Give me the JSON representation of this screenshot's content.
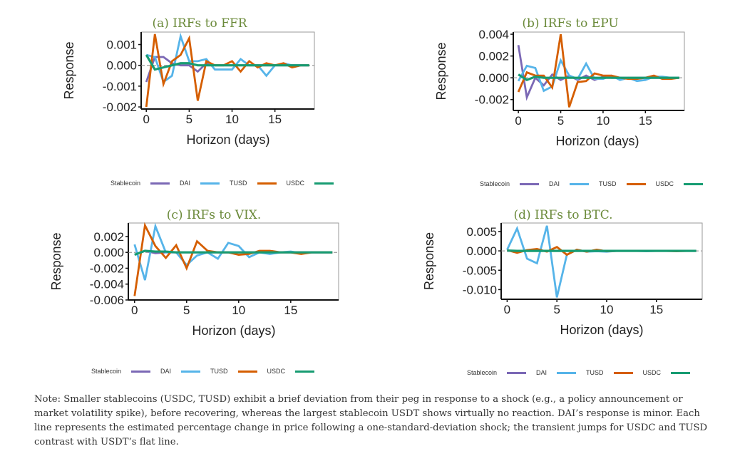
{
  "chart_data": [
    {
      "type": "line",
      "title": "(a) IRFs to FFR",
      "xlabel": "Horizon (days)",
      "ylabel": "Response",
      "xlim": [
        -0.6,
        19.6
      ],
      "ylim": [
        -0.0021,
        0.0016
      ],
      "xticks": [
        0,
        5,
        10,
        15
      ],
      "yticks": [
        -0.002,
        -0.001,
        0.0,
        0.001
      ],
      "ytick_labels": [
        "-0.002",
        "-0.001",
        "0.000",
        "0.001"
      ],
      "x": [
        0,
        1,
        2,
        3,
        4,
        5,
        6,
        7,
        8,
        9,
        10,
        11,
        12,
        13,
        14,
        15,
        16,
        17,
        18,
        19
      ],
      "series": [
        {
          "color": "#7b68b5",
          "values": [
            -0.0008,
            0.0004,
            0.0004,
            0.0001,
            0,
            0,
            -0.0003,
            0.0001,
            0,
            0,
            0,
            0,
            0,
            0,
            0,
            0,
            0,
            0,
            0,
            0
          ]
        },
        {
          "color": "#56b4e9",
          "values": [
            0.0005,
            0.0004,
            -0.0008,
            -0.0005,
            0.0014,
            0.0002,
            0.0002,
            0.0003,
            -0.0002,
            -0.0002,
            -0.0002,
            0.0003,
            0,
            0,
            -0.0005,
            0,
            0.0001,
            0,
            0,
            0
          ]
        },
        {
          "color": "#d55e00",
          "values": [
            -0.002,
            0.0015,
            -0.0009,
            0.0002,
            0.0005,
            0.0013,
            -0.0017,
            0.0002,
            0,
            0,
            0.0002,
            -0.0003,
            0.0002,
            -0.0001,
            0.0001,
            0,
            0.0001,
            -0.0001,
            0,
            0
          ]
        },
        {
          "color": "#179c72",
          "values": [
            0.0005,
            -0.0002,
            -0.0001,
            0,
            0.0001,
            0.0001,
            0,
            0,
            0,
            0,
            0,
            0,
            0,
            0,
            0,
            0,
            0,
            0,
            0,
            0
          ]
        }
      ],
      "legend": {
        "title": "Stablecoin",
        "labels": [
          "DAI",
          "TUSD",
          "USDC",
          ""
        ]
      }
    },
    {
      "type": "line",
      "title": "(b) IRFs to EPU",
      "xlabel": "Horizon (days)",
      "ylabel": "Response",
      "xlim": [
        -0.6,
        19.6
      ],
      "ylim": [
        -0.003,
        0.0042
      ],
      "xticks": [
        0,
        5,
        10,
        15
      ],
      "yticks": [
        -0.002,
        0.0,
        0.002,
        0.004
      ],
      "ytick_labels": [
        "-0.002",
        "0.000",
        "0.002",
        "0.004"
      ],
      "x": [
        0,
        1,
        2,
        3,
        4,
        5,
        6,
        7,
        8,
        9,
        10,
        11,
        12,
        13,
        14,
        15,
        16,
        17,
        18,
        19
      ],
      "series": [
        {
          "color": "#7b68b5",
          "values": [
            0.003,
            -0.0018,
            0,
            -0.0007,
            0.0003,
            -0.0002,
            0.0002,
            -0.0002,
            0.0002,
            -0.0002,
            0.0001,
            0,
            0,
            0,
            0,
            0,
            0,
            0,
            0,
            0
          ]
        },
        {
          "color": "#56b4e9",
          "values": [
            -0.0003,
            0.0011,
            0.0009,
            -0.0012,
            -0.0008,
            0.0016,
            0.0002,
            -0.0001,
            0.0013,
            -0.0001,
            -0.0001,
            0.0002,
            -0.0002,
            0,
            -0.0003,
            -0.0002,
            0.0001,
            0.0001,
            0,
            0
          ]
        },
        {
          "color": "#d55e00",
          "values": [
            -0.0013,
            0.0005,
            0.0002,
            0.0002,
            -0.0009,
            0.004,
            -0.0027,
            -0.0004,
            -0.0003,
            0.0004,
            0.0002,
            0.0002,
            0,
            -0.0001,
            -0.0001,
            0,
            0.0002,
            -0.0001,
            -0.0001,
            0
          ]
        },
        {
          "color": "#179c72",
          "values": [
            0.0003,
            -0.0002,
            0.0001,
            0,
            0,
            0,
            0,
            0,
            0,
            0,
            0,
            0,
            0,
            0,
            0,
            0,
            0,
            0,
            0,
            0
          ]
        }
      ],
      "legend": {
        "title": "Stablecoin",
        "labels": [
          "DAI",
          "TUSD",
          "USDC",
          ""
        ]
      }
    },
    {
      "type": "line",
      "title": "(c) IRFs to VIX.",
      "xlabel": "Horizon (days)",
      "ylabel": "Response",
      "xlim": [
        -0.6,
        19.6
      ],
      "ylim": [
        -0.006,
        0.0037
      ],
      "xticks": [
        0,
        5,
        10,
        15
      ],
      "yticks": [
        -0.006,
        -0.004,
        -0.002,
        0.0,
        0.002
      ],
      "ytick_labels": [
        "-0.006",
        "-0.004",
        "-0.002",
        "0.000",
        "0.002"
      ],
      "x": [
        0,
        1,
        2,
        3,
        4,
        5,
        6,
        7,
        8,
        9,
        10,
        11,
        12,
        13,
        14,
        15,
        16,
        17,
        18,
        19
      ],
      "series": [
        {
          "color": "#7b68b5",
          "values": [
            -0.0003,
            0.0002,
            -0.0001,
            0,
            0,
            0,
            0,
            0,
            0,
            0,
            0,
            0,
            0,
            0,
            0,
            0,
            0,
            0,
            0,
            0
          ]
        },
        {
          "color": "#56b4e9",
          "values": [
            0.001,
            -0.0035,
            0.0033,
            0,
            0,
            -0.0016,
            -0.0004,
            0,
            -0.0008,
            0.0012,
            0.0008,
            -0.0006,
            0,
            -0.0002,
            0,
            0.0001,
            -0.0001,
            0,
            0,
            0
          ]
        },
        {
          "color": "#d55e00",
          "values": [
            -0.0055,
            0.0034,
            0.0008,
            -0.0007,
            0.0009,
            -0.002,
            0.0014,
            0.0002,
            0,
            0,
            -0.0003,
            -0.0002,
            0.0002,
            0.0002,
            0,
            0,
            -0.0002,
            0,
            0,
            0
          ]
        },
        {
          "color": "#179c72",
          "values": [
            -0.0003,
            0.0002,
            0.0001,
            0.0001,
            0,
            0,
            0,
            0,
            0,
            0,
            0,
            0,
            0,
            0,
            0,
            0,
            0,
            0,
            0,
            0
          ]
        }
      ],
      "legend": {
        "title": "Stablecoin",
        "labels": [
          "DAI",
          "TUSD",
          "USDC",
          ""
        ]
      }
    },
    {
      "type": "line",
      "title": "(d) IRFs to BTC.",
      "xlabel": "Horizon (days)",
      "ylabel": "Response",
      "xlim": [
        -0.6,
        19.6
      ],
      "ylim": [
        -0.0125,
        0.0072
      ],
      "xticks": [
        0,
        5,
        10,
        15
      ],
      "yticks": [
        -0.01,
        -0.005,
        0.0,
        0.005
      ],
      "ytick_labels": [
        "-0.010",
        "-0.005",
        "0.000",
        "0.005"
      ],
      "x": [
        0,
        1,
        2,
        3,
        4,
        5,
        6,
        7,
        8,
        9,
        10,
        11,
        12,
        13,
        14,
        15,
        16,
        17,
        18,
        19
      ],
      "series": [
        {
          "color": "#7b68b5",
          "values": [
            0,
            0,
            0,
            0,
            0,
            0,
            0,
            0,
            0,
            0,
            0,
            0,
            0,
            0,
            0,
            0,
            0,
            0,
            0,
            0
          ]
        },
        {
          "color": "#56b4e9",
          "values": [
            0.0003,
            0.0058,
            -0.002,
            -0.0032,
            0.0065,
            -0.012,
            -0.001,
            0.0003,
            -0.0002,
            -0.0001,
            -0.0002,
            0,
            0,
            0,
            -0.0001,
            0,
            0,
            0,
            0,
            0
          ]
        },
        {
          "color": "#d55e00",
          "values": [
            0.0002,
            -0.0005,
            0.0002,
            0.0005,
            -0.0002,
            0.001,
            -0.001,
            0.0003,
            -0.0002,
            0.0003,
            -0.0001,
            0,
            0,
            0,
            0,
            0,
            0,
            -0.0001,
            0,
            0
          ]
        },
        {
          "color": "#179c72",
          "values": [
            0.0001,
            0,
            0,
            0,
            0,
            0,
            0,
            0,
            0,
            0,
            0,
            0,
            0,
            0,
            0,
            0,
            0,
            0,
            0,
            0
          ]
        }
      ],
      "legend": {
        "title": "Stablecoin",
        "labels": [
          "DAI",
          "TUSD",
          "USDC",
          ""
        ]
      }
    }
  ],
  "note": "Note: Smaller stablecoins (USDC, TUSD) exhibit a brief deviation from their peg in response to a shock (e.g., a policy announcement or market volatility spike), before recovering, whereas the largest stablecoin USDT shows virtually no reaction. DAI’s response is minor. Each line represents the estimated percentage change in price following a one-standard-deviation shock; the transient jumps for USDC and TUSD contrast with USDT’s flat line."
}
